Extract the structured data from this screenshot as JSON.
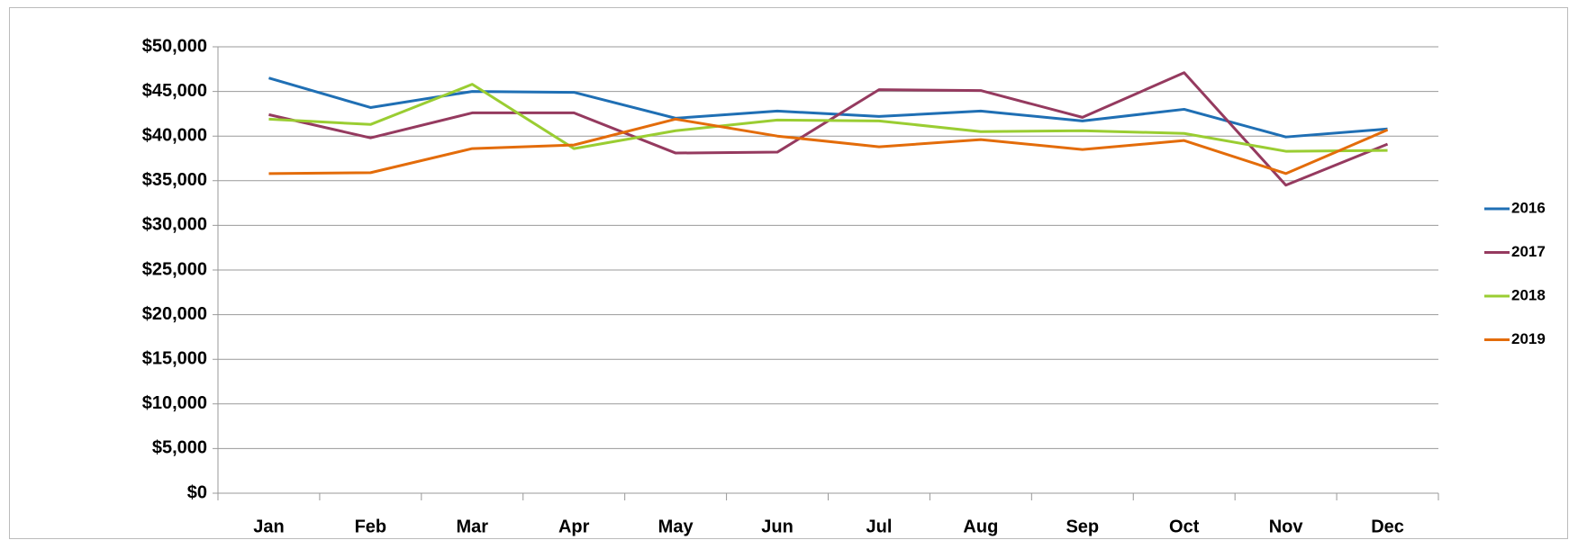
{
  "chart_data": {
    "type": "line",
    "categories": [
      "Jan",
      "Feb",
      "Mar",
      "Apr",
      "May",
      "Jun",
      "Jul",
      "Aug",
      "Sep",
      "Oct",
      "Nov",
      "Dec"
    ],
    "series": [
      {
        "name": "2016",
        "color": "#1f6fb4",
        "values": [
          46500,
          43200,
          45000,
          44900,
          42000,
          42800,
          42200,
          42800,
          41700,
          43000,
          39900,
          40800
        ]
      },
      {
        "name": "2017",
        "color": "#953a5f",
        "values": [
          42400,
          39800,
          42600,
          42600,
          38100,
          38200,
          45200,
          45100,
          42100,
          47100,
          34500,
          39100
        ]
      },
      {
        "name": "2018",
        "color": "#9acd32",
        "values": [
          41900,
          41300,
          45800,
          38600,
          40600,
          41800,
          41700,
          40500,
          40600,
          40300,
          38300,
          38400
        ]
      },
      {
        "name": "2019",
        "color": "#e36c0a",
        "values": [
          35800,
          35900,
          38600,
          39000,
          41900,
          40000,
          38800,
          39600,
          38500,
          39500,
          35800,
          40700
        ]
      }
    ],
    "ylim": [
      0,
      50000
    ],
    "yticks": [
      {
        "value": 0,
        "label": "$0"
      },
      {
        "value": 5000,
        "label": "$5,000"
      },
      {
        "value": 10000,
        "label": "$10,000"
      },
      {
        "value": 15000,
        "label": "$15,000"
      },
      {
        "value": 20000,
        "label": "$20,000"
      },
      {
        "value": 25000,
        "label": "$25,000"
      },
      {
        "value": 30000,
        "label": "$30,000"
      },
      {
        "value": 35000,
        "label": "$35,000"
      },
      {
        "value": 40000,
        "label": "$40,000"
      },
      {
        "value": 45000,
        "label": "$45,000"
      },
      {
        "value": 50000,
        "label": "$50,000"
      }
    ],
    "grid": true,
    "legend": "right"
  }
}
